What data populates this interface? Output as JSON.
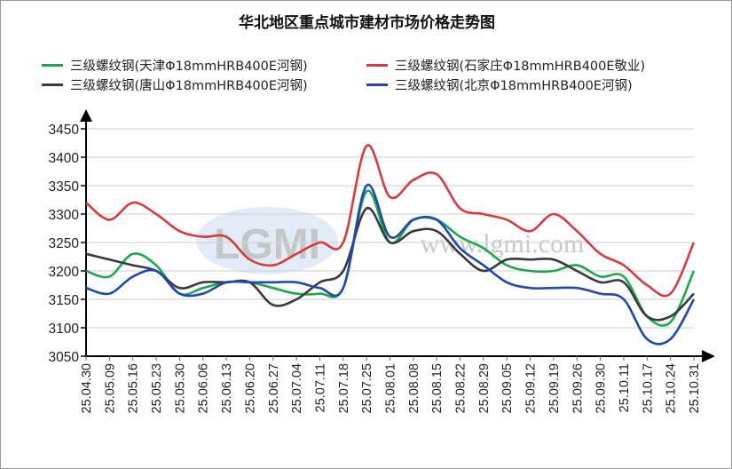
{
  "chart_data": {
    "type": "line",
    "title": "华北地区重点城市建材市场价格走势图",
    "watermark": "www.lgmi.com",
    "logo": "LGMI",
    "xlabel": "",
    "ylabel": "",
    "ylim": [
      3050,
      3450
    ],
    "yticks": [
      3050,
      3100,
      3150,
      3200,
      3250,
      3300,
      3350,
      3400,
      3450
    ],
    "grid": true,
    "legend_position": "top",
    "categories": [
      "25.04.30",
      "25.05.09",
      "25.05.16",
      "25.05.23",
      "25.05.30",
      "25.06.06",
      "25.06.13",
      "25.06.20",
      "25.06.27",
      "25.07.04",
      "25.07.11",
      "25.07.18",
      "25.07.25",
      "25.08.01",
      "25.08.08",
      "25.08.15",
      "25.08.22",
      "25.08.29",
      "25.09.05",
      "25.09.12",
      "25.09.19",
      "25.09.26",
      "25.09.30",
      "25.10.11",
      "25.10.17",
      "25.10.24",
      "25.10.31"
    ],
    "series": [
      {
        "name": "三级螺纹钢(天津Φ18mmHRB400E河钢)",
        "color": "#1aaa4a",
        "values": [
          3200,
          3190,
          3230,
          3210,
          3160,
          3170,
          3180,
          3180,
          3170,
          3160,
          3160,
          3170,
          3340,
          3250,
          3290,
          3290,
          3260,
          3240,
          3210,
          3200,
          3200,
          3210,
          3190,
          3190,
          3120,
          3110,
          3200
        ]
      },
      {
        "name": "三级螺纹钢(石家庄Φ18mmHRB400E敬业)",
        "color": "#d93a3a",
        "values": [
          3320,
          3290,
          3320,
          3300,
          3270,
          3260,
          3260,
          3220,
          3210,
          3230,
          3250,
          3250,
          3420,
          3330,
          3360,
          3370,
          3310,
          3300,
          3290,
          3270,
          3300,
          3270,
          3230,
          3210,
          3175,
          3160,
          3250
        ]
      },
      {
        "name": "三级螺纹钢(唐山Φ18mmHRB400E河钢)",
        "color": "#3a3a3a",
        "values": [
          3230,
          3220,
          3210,
          3200,
          3170,
          3180,
          3180,
          3180,
          3140,
          3150,
          3180,
          3200,
          3310,
          3250,
          3270,
          3270,
          3230,
          3200,
          3220,
          3220,
          3220,
          3200,
          3180,
          3180,
          3120,
          3120,
          3160
        ]
      },
      {
        "name": "三级螺纹钢(北京Φ18mmHRB400E河钢)",
        "color": "#2048b0",
        "values": [
          3170,
          3160,
          3190,
          3200,
          3160,
          3160,
          3180,
          3180,
          3180,
          3180,
          3170,
          3170,
          3350,
          3260,
          3290,
          3290,
          3240,
          3210,
          3180,
          3170,
          3170,
          3170,
          3160,
          3150,
          3080,
          3080,
          3150
        ]
      }
    ]
  }
}
